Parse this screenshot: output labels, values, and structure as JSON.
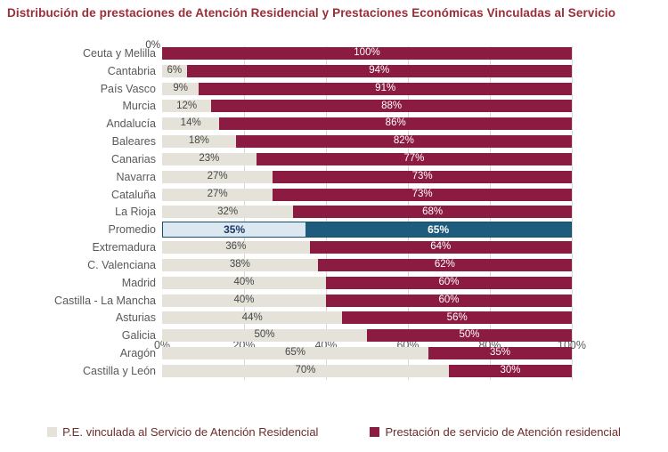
{
  "title": "Distribución de prestaciones de Atención Residencial y Prestaciones Económicas Vinculadas al Servicio",
  "chart_data": {
    "type": "bar",
    "orientation": "horizontal",
    "stacked": true,
    "title": "Distribución de prestaciones de Atención Residencial y Prestaciones Económicas Vinculadas al Servicio",
    "categories": [
      "Ceuta y Melilla",
      "Cantabria",
      "País Vasco",
      "Murcia",
      "Andalucía",
      "Baleares",
      "Canarias",
      "Navarra",
      "Cataluña",
      "La Rioja",
      "Promedio",
      "Extremadura",
      "C. Valenciana",
      "Madrid",
      "Castilla - La Mancha",
      "Asturias",
      "Galicia",
      "Aragón",
      "Castilla y León"
    ],
    "series": [
      {
        "name": "P.E. vinculada al Servicio de Atención Residencial",
        "color": "#e5e2da",
        "values": [
          0,
          6,
          9,
          12,
          14,
          18,
          23,
          27,
          27,
          32,
          35,
          36,
          38,
          40,
          40,
          44,
          50,
          65,
          70
        ]
      },
      {
        "name": "Prestación de servicio de Atención residencial",
        "color": "#8b1b40",
        "values": [
          100,
          94,
          91,
          88,
          86,
          82,
          77,
          73,
          73,
          68,
          65,
          64,
          62,
          60,
          60,
          56,
          50,
          35,
          30
        ]
      }
    ],
    "value_label_suffix": "%",
    "highlight_category": "Promedio",
    "highlight": {
      "seg1_color": "#dbe8f2",
      "seg2_color": "#1d5c7d",
      "border_color": "#15506a",
      "seg1_text_color": "#17375e",
      "seg2_text_color": "#ffffff"
    },
    "xlim": [
      0,
      100
    ],
    "x_ticks": [
      0,
      20,
      40,
      60,
      80,
      100
    ],
    "x_tick_labels": [
      "0%",
      "20%",
      "40%",
      "60%",
      "80%",
      "100%"
    ],
    "gridlines_at": [
      20,
      40,
      60,
      80,
      100
    ],
    "legend_position": "bottom"
  },
  "colors": {
    "background": "#ffffff",
    "title_text": "#9a2d38",
    "category_label": "#595959",
    "axis_label": "#595959",
    "legend_text": "#6b2c2c",
    "value_on_light": "#474747",
    "value_on_dark": "#ffffff",
    "gridline": "#d9d9d9"
  }
}
